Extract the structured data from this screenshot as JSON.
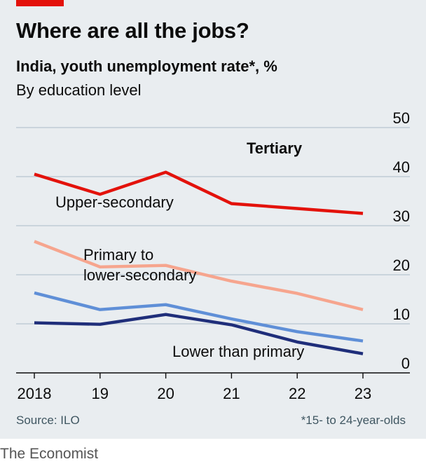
{
  "header": {
    "title": "Where are all the jobs?",
    "subtitle": "India, youth unemployment rate*, %",
    "subtitle2": "By education level"
  },
  "footer": {
    "source": "Source: ILO",
    "footnote": "*15- to 24-year-olds",
    "brand": "The Economist"
  },
  "colors": {
    "accent": "#e3120b",
    "background": "#e9edf0",
    "grid": "#b7c6cf",
    "axis": "#0c0c0c"
  },
  "chart_data": {
    "type": "line",
    "title": "Where are all the jobs?",
    "subtitle": "India, youth unemployment rate*, %",
    "x": [
      2018,
      2019,
      2020,
      2021,
      2022,
      2023
    ],
    "x_tick_labels": [
      "2018",
      "19",
      "20",
      "21",
      "22",
      "23"
    ],
    "ylim": [
      0,
      50
    ],
    "y_ticks": [
      0,
      10,
      20,
      30,
      40,
      50
    ],
    "y_axis_side": "right",
    "grid": true,
    "series": [
      {
        "name": "Tertiary",
        "color": "#e3120b",
        "label_bold": true,
        "values": [
          40.5,
          36.4,
          40.9,
          34.5,
          33.5,
          32.5
        ]
      },
      {
        "name": "Upper-secondary",
        "color": "#f6a58e",
        "label_bold": false,
        "values": [
          26.8,
          21.6,
          21.9,
          18.7,
          16.2,
          12.9
        ]
      },
      {
        "name": "Primary to lower-secondary",
        "name_lines": [
          "Primary to",
          "lower-secondary"
        ],
        "color": "#5f8fd7",
        "label_bold": false,
        "values": [
          16.3,
          12.9,
          13.9,
          11.0,
          8.4,
          6.5
        ]
      },
      {
        "name": "Lower than primary",
        "color": "#1f2e7a",
        "label_bold": false,
        "values": [
          10.2,
          9.9,
          11.9,
          9.8,
          6.3,
          3.9
        ]
      }
    ]
  }
}
